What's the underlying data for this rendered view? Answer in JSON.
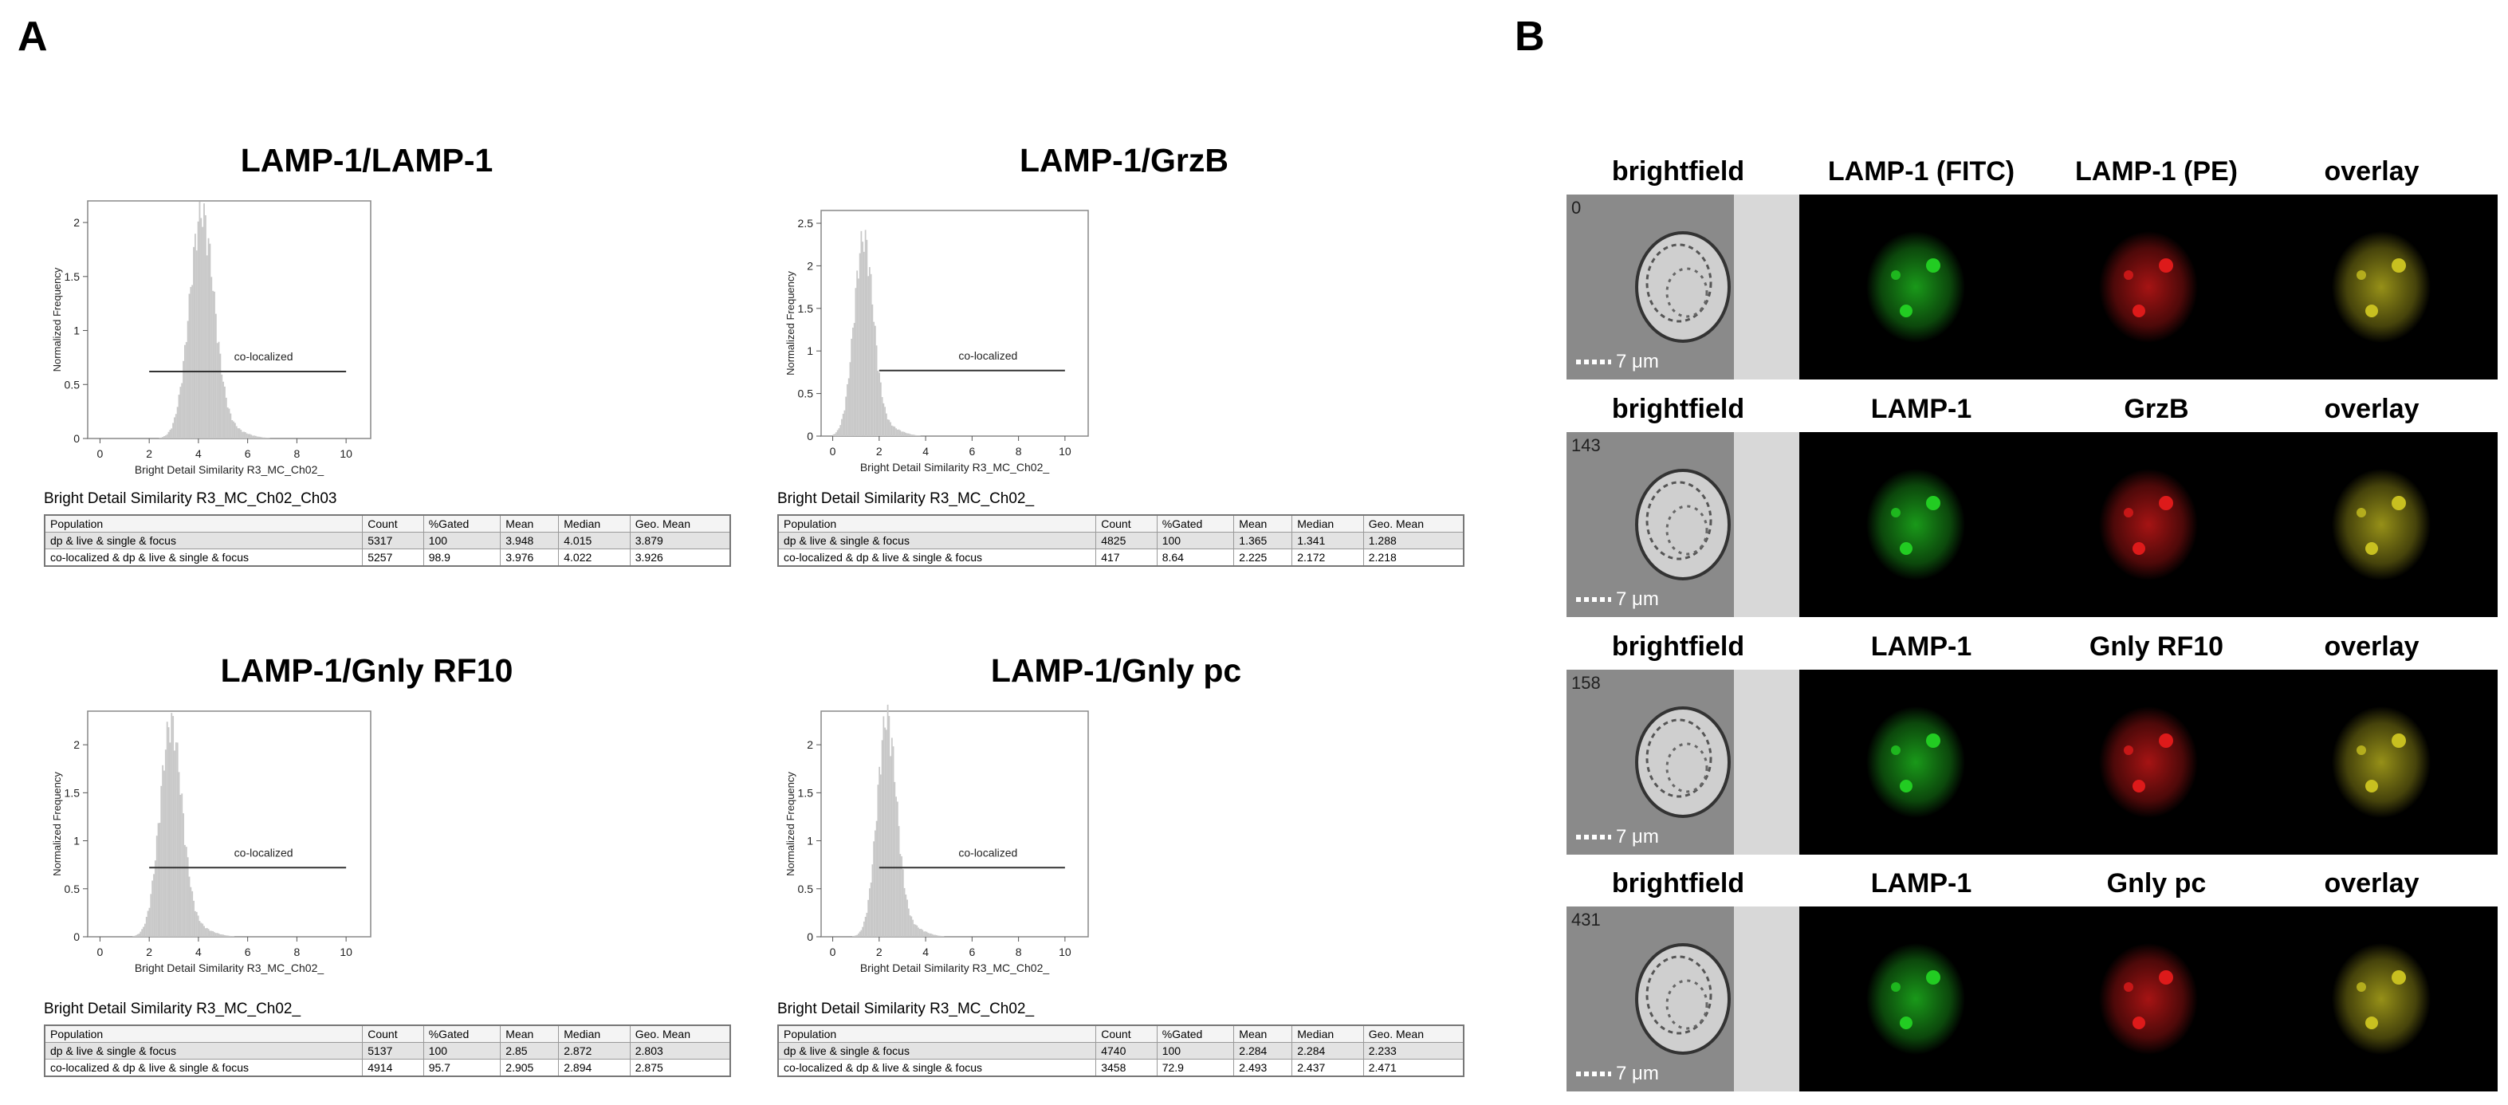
{
  "panel_a": {
    "letter": "A",
    "plots": [
      {
        "title": "LAMP-1/LAMP-1",
        "caption": "Bright Detail Similarity R3_MC_Ch02_Ch03",
        "region_label": "co-localized",
        "chart_data": {
          "type": "histogram",
          "xlabel": "Bright Detail Similarity R3_MC_Ch02_",
          "ylabel": "Normalized Frequency",
          "xlim": [
            -0.5,
            11
          ],
          "ylim": [
            0,
            2.2
          ],
          "xticks": [
            0,
            2,
            4,
            6,
            8,
            10
          ],
          "yticks": [
            0,
            0.5,
            1,
            1.5,
            2
          ],
          "peak": {
            "center": 4.1,
            "height": 1.98,
            "sigma": 0.5
          },
          "gate": {
            "x_start": 2,
            "x_end": 10,
            "y": 0.62
          }
        },
        "table": {
          "headers": [
            "Population",
            "Count",
            "%Gated",
            "Mean",
            "Median",
            "Geo. Mean"
          ],
          "rows": [
            [
              "dp & live & single & focus",
              "5317",
              "100",
              "3.948",
              "4.015",
              "3.879"
            ],
            [
              "co-localized & dp & live & single & focus",
              "5257",
              "98.9",
              "3.976",
              "4.022",
              "3.926"
            ]
          ]
        }
      },
      {
        "title": "LAMP-1/GrzB",
        "caption": "Bright Detail Similarity R3_MC_Ch02_",
        "region_label": "co-localized",
        "chart_data": {
          "type": "histogram",
          "xlabel": "Bright Detail Similarity R3_MC_Ch02_",
          "ylabel": "Normalized Frequency",
          "xlim": [
            -0.5,
            11
          ],
          "ylim": [
            0,
            2.65
          ],
          "xticks": [
            0,
            2,
            4,
            6,
            8,
            10
          ],
          "yticks": [
            0,
            0.5,
            1,
            1.5,
            2,
            2.5
          ],
          "peak": {
            "center": 1.3,
            "height": 2.22,
            "sigma": 0.42
          },
          "gate": {
            "x_start": 2,
            "x_end": 10,
            "y": 0.77
          }
        },
        "table": {
          "headers": [
            "Population",
            "Count",
            "%Gated",
            "Mean",
            "Median",
            "Geo. Mean"
          ],
          "rows": [
            [
              "dp & live & single & focus",
              "4825",
              "100",
              "1.365",
              "1.341",
              "1.288"
            ],
            [
              "co-localized & dp & live & single & focus",
              "417",
              "8.64",
              "2.225",
              "2.172",
              "2.218"
            ]
          ]
        }
      },
      {
        "title": "LAMP-1/Gnly RF10",
        "caption": "Bright Detail Similarity R3_MC_Ch02_",
        "region_label": "co-localized",
        "chart_data": {
          "type": "histogram",
          "xlabel": "Bright Detail Similarity R3_MC_Ch02_",
          "ylabel": "Normalized Frequency",
          "xlim": [
            -0.5,
            11
          ],
          "ylim": [
            0,
            2.35
          ],
          "xticks": [
            0,
            2,
            4,
            6,
            8,
            10
          ],
          "yticks": [
            0,
            0.5,
            1,
            1.5,
            2
          ],
          "peak": {
            "center": 2.85,
            "height": 2.12,
            "sigma": 0.45
          },
          "gate": {
            "x_start": 2,
            "x_end": 10,
            "y": 0.72
          }
        },
        "table": {
          "headers": [
            "Population",
            "Count",
            "%Gated",
            "Mean",
            "Median",
            "Geo. Mean"
          ],
          "rows": [
            [
              "dp & live & single & focus",
              "5137",
              "100",
              "2.85",
              "2.872",
              "2.803"
            ],
            [
              "co-localized & dp & live & single & focus",
              "4914",
              "95.7",
              "2.905",
              "2.894",
              "2.875"
            ]
          ]
        }
      },
      {
        "title": "LAMP-1/Gnly pc",
        "caption": "Bright Detail Similarity R3_MC_Ch02_",
        "region_label": "co-localized",
        "chart_data": {
          "type": "histogram",
          "xlabel": "Bright Detail Similarity R3_MC_Ch02_",
          "ylabel": "Normalized Frequency",
          "xlim": [
            -0.5,
            11
          ],
          "ylim": [
            0,
            2.35
          ],
          "xticks": [
            0,
            2,
            4,
            6,
            8,
            10
          ],
          "yticks": [
            0,
            0.5,
            1,
            1.5,
            2
          ],
          "peak": {
            "center": 2.3,
            "height": 2.18,
            "sigma": 0.42
          },
          "gate": {
            "x_start": 2,
            "x_end": 10,
            "y": 0.72
          }
        },
        "table": {
          "headers": [
            "Population",
            "Count",
            "%Gated",
            "Mean",
            "Median",
            "Geo. Mean"
          ],
          "rows": [
            [
              "dp & live & single & focus",
              "4740",
              "100",
              "2.284",
              "2.284",
              "2.233"
            ],
            [
              "co-localized & dp & live & single & focus",
              "3458",
              "72.9",
              "2.493",
              "2.437",
              "2.471"
            ]
          ]
        }
      }
    ]
  },
  "panel_b": {
    "letter": "B",
    "scale_label": "7 μm",
    "rows": [
      {
        "object_number": "0",
        "labels": [
          "brightfield",
          "LAMP-1 (FITC)",
          "LAMP-1 (PE)",
          "overlay"
        ]
      },
      {
        "object_number": "143",
        "labels": [
          "brightfield",
          "LAMP-1",
          "GrzB",
          "overlay"
        ]
      },
      {
        "object_number": "158",
        "labels": [
          "brightfield",
          "LAMP-1",
          "Gnly RF10",
          "overlay"
        ]
      },
      {
        "object_number": "431",
        "labels": [
          "brightfield",
          "LAMP-1",
          "Gnly pc",
          "overlay"
        ]
      }
    ],
    "channel_colors": {
      "brightfield": "#8a8a8a",
      "green": "#22cc22",
      "red": "#dd1a1a",
      "overlay": "#c8c020"
    }
  }
}
